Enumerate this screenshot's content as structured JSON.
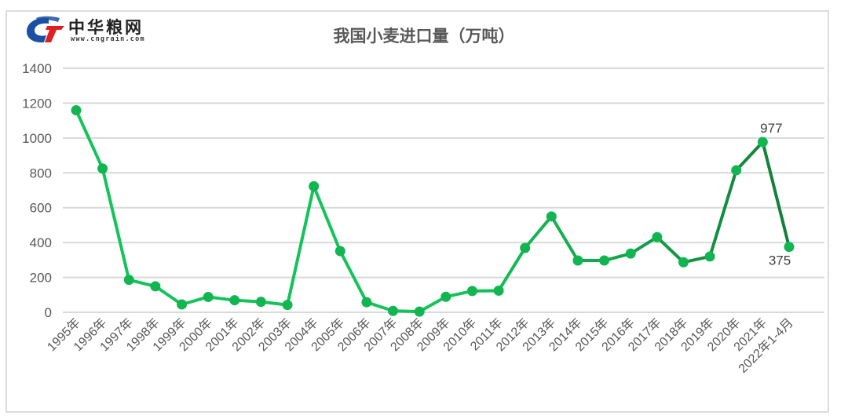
{
  "logo": {
    "name_cn": "中华粮网",
    "url_text": "www.cngrain.com",
    "colors": {
      "blue": "#1a4fa3",
      "red": "#e02020"
    }
  },
  "title": "我国小麦进口量（万吨）",
  "colors": {
    "line_start": "#14c35a",
    "line_end": "#127f39",
    "marker": "#13b552",
    "grid": "#d9d9d9",
    "axis_text": "#595959"
  },
  "chart_data": {
    "type": "line",
    "title": "我国小麦进口量（万吨）",
    "xlabel": "",
    "ylabel": "",
    "ylim": [
      0,
      1400
    ],
    "yticks": [
      0,
      200,
      400,
      600,
      800,
      1000,
      1200,
      1400
    ],
    "grid": true,
    "legend": null,
    "categories": [
      "1995年",
      "1996年",
      "1997年",
      "1998年",
      "1999年",
      "2000年",
      "2001年",
      "2002年",
      "2003年",
      "2004年",
      "2005年",
      "2006年",
      "2007年",
      "2008年",
      "2009年",
      "2010年",
      "2011年",
      "2012年",
      "2013年",
      "2014年",
      "2015年",
      "2016年",
      "2017年",
      "2018年",
      "2019年",
      "2020年",
      "2021年",
      "2022年1-4月"
    ],
    "series": [
      {
        "name": "小麦进口量",
        "values": [
          1159,
          825,
          186,
          149,
          45,
          88,
          69,
          60,
          42,
          723,
          351,
          58,
          8,
          4,
          89,
          122,
          124,
          369,
          550,
          297,
          297,
          337,
          431,
          287,
          320,
          815,
          977,
          375
        ]
      }
    ],
    "annotations": [
      {
        "category": "2021年",
        "value": 977,
        "label": "977",
        "position": "above"
      },
      {
        "category": "2022年1-4月",
        "value": 375,
        "label": "375",
        "position": "below"
      }
    ]
  }
}
